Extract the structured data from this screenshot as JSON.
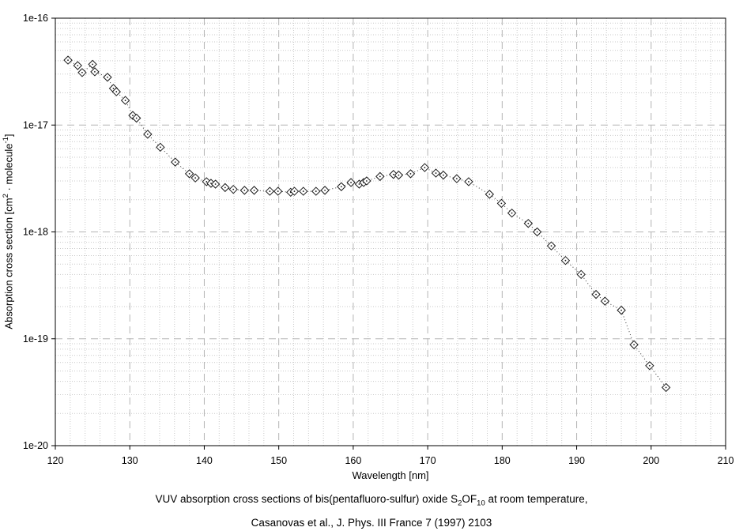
{
  "chart_data": {
    "type": "scatter",
    "title": "",
    "xlabel": "Wavelength [nm]",
    "ylabel": "Absorption cross section [cm2 · molecule-1]",
    "x_scale": "linear",
    "y_scale": "log",
    "xlim": [
      120,
      210
    ],
    "ylim": [
      1e-20,
      1e-16
    ],
    "x_major_ticks": [
      120,
      130,
      140,
      150,
      160,
      170,
      180,
      190,
      200,
      210
    ],
    "x_tick_labels": [
      "120",
      "130",
      "140",
      "150",
      "160",
      "170",
      "180",
      "190",
      "200",
      "210"
    ],
    "x_minor_step": 2,
    "y_major_exponents": [
      -16,
      -17,
      -18,
      -19,
      -20
    ],
    "y_tick_labels": [
      "1e-16",
      "1e-17",
      "1e-18",
      "1e-19",
      "1e-20"
    ],
    "grid": "major dashed, minor dotted, both axes",
    "legend": "none",
    "marker": "open-diamond with center dot",
    "line_style": "dotted",
    "series": [
      {
        "name": "S2OF10 VUV absorption cross section",
        "points": [
          [
            121.7,
            4.05e-17
          ],
          [
            123.0,
            3.6e-17
          ],
          [
            123.6,
            3.1e-17
          ],
          [
            125.0,
            3.7e-17
          ],
          [
            125.3,
            3.15e-17
          ],
          [
            127.0,
            2.8e-17
          ],
          [
            127.8,
            2.2e-17
          ],
          [
            128.2,
            2.05e-17
          ],
          [
            129.4,
            1.7e-17
          ],
          [
            130.4,
            1.23e-17
          ],
          [
            130.9,
            1.16e-17
          ],
          [
            132.4,
            8.2e-18
          ],
          [
            134.1,
            6.2e-18
          ],
          [
            136.1,
            4.5e-18
          ],
          [
            138.0,
            3.5e-18
          ],
          [
            138.8,
            3.2e-18
          ],
          [
            140.3,
            2.95e-18
          ],
          [
            140.9,
            2.85e-18
          ],
          [
            141.5,
            2.8e-18
          ],
          [
            142.8,
            2.6e-18
          ],
          [
            143.9,
            2.5e-18
          ],
          [
            145.4,
            2.45e-18
          ],
          [
            146.7,
            2.45e-18
          ],
          [
            148.8,
            2.4e-18
          ],
          [
            149.9,
            2.4e-18
          ],
          [
            151.6,
            2.35e-18
          ],
          [
            152.1,
            2.4e-18
          ],
          [
            153.3,
            2.4e-18
          ],
          [
            155.0,
            2.4e-18
          ],
          [
            156.2,
            2.45e-18
          ],
          [
            158.4,
            2.65e-18
          ],
          [
            159.7,
            2.9e-18
          ],
          [
            160.8,
            2.8e-18
          ],
          [
            161.4,
            2.9e-18
          ],
          [
            161.8,
            3e-18
          ],
          [
            163.6,
            3.3e-18
          ],
          [
            165.4,
            3.45e-18
          ],
          [
            166.1,
            3.4e-18
          ],
          [
            167.7,
            3.5e-18
          ],
          [
            169.6,
            4e-18
          ],
          [
            171.1,
            3.55e-18
          ],
          [
            172.1,
            3.4e-18
          ],
          [
            173.9,
            3.15e-18
          ],
          [
            175.5,
            2.95e-18
          ],
          [
            178.3,
            2.25e-18
          ],
          [
            179.9,
            1.85e-18
          ],
          [
            181.3,
            1.5e-18
          ],
          [
            183.5,
            1.2e-18
          ],
          [
            184.7,
            1e-18
          ],
          [
            186.6,
            7.4e-19
          ],
          [
            188.5,
            5.4e-19
          ],
          [
            190.6,
            4e-19
          ],
          [
            192.6,
            2.6e-19
          ],
          [
            193.8,
            2.25e-19
          ],
          [
            196.0,
            1.85e-19
          ],
          [
            197.7,
            8.8e-20
          ],
          [
            199.8,
            5.6e-20
          ],
          [
            202.0,
            3.5e-20
          ]
        ]
      }
    ]
  },
  "axes": {
    "x_label": "Wavelength [nm]",
    "y_label_parts": {
      "pre": "Absorption cross section [cm",
      "sup1": "2",
      "mid": " · molecule",
      "sup2": "-1",
      "post": "]"
    }
  },
  "caption": {
    "line1_pre": "VUV absorption cross sections of bis(pentafluoro-sulfur) oxide S",
    "line1_sub1": "2",
    "line1_mid": "OF",
    "line1_sub2": "10",
    "line1_post": " at room temperature,",
    "line2": "Casanovas et al., J. Phys. III France 7 (1997) 2103"
  },
  "colors": {
    "background": "#ffffff",
    "frame": "#000000",
    "major_grid": "#b4b4b4",
    "minor_grid": "#c9c9c9",
    "series_line": "#333333",
    "marker_stroke": "#1a1a1a",
    "marker_fill": "#ffffff",
    "text": "#000000"
  }
}
